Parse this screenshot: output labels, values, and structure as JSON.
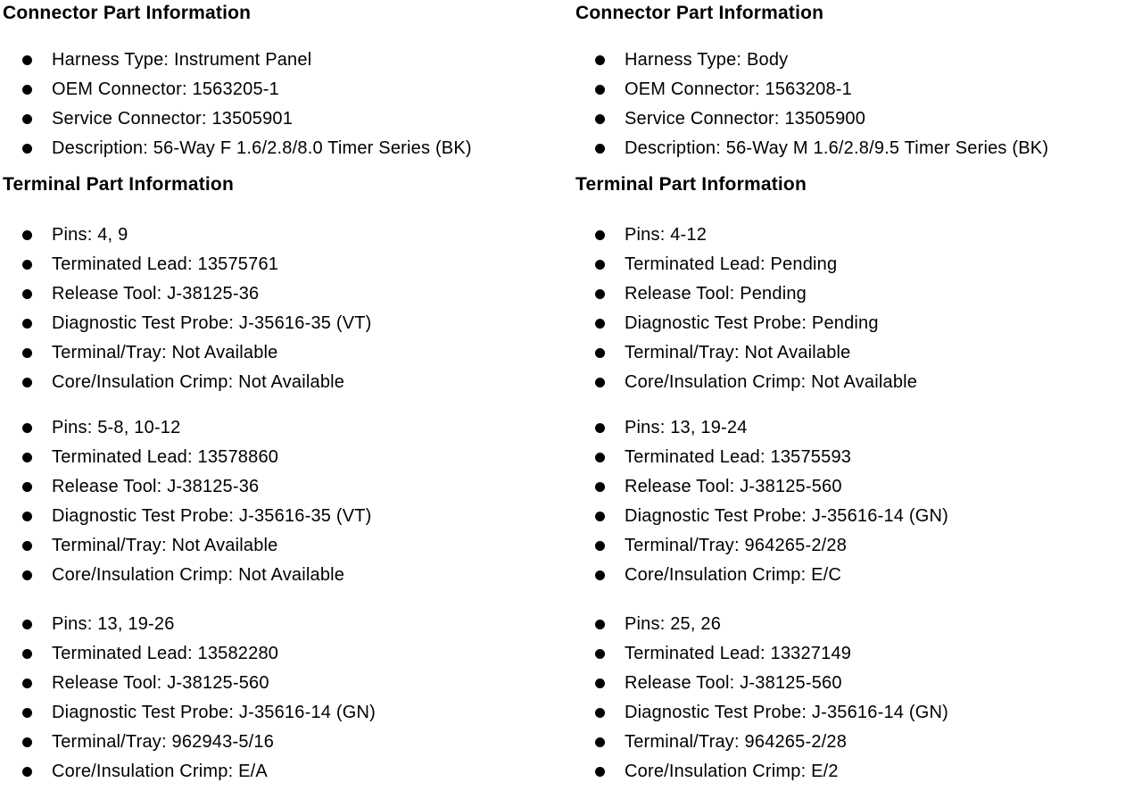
{
  "page": {
    "background_color": "#ffffff",
    "text_color": "#000000",
    "bullet_icon": "filled-circle",
    "columns": [
      {
        "connector": {
          "heading": "Connector Part Information",
          "items": [
            {
              "label": "Harness Type:",
              "value": "Instrument Panel"
            },
            {
              "label": "OEM Connector:",
              "value": "1563205-1"
            },
            {
              "label": "Service Connector:",
              "value": "13505901"
            },
            {
              "label": "Description:",
              "value": "56-Way F 1.6/2.8/8.0 Timer Series (BK)"
            }
          ]
        },
        "terminal": {
          "heading": "Terminal Part Information",
          "groups": [
            [
              {
                "label": "Pins:",
                "value": "4, 9"
              },
              {
                "label": "Terminated Lead:",
                "value": "13575761"
              },
              {
                "label": "Release Tool:",
                "value": "J-38125-36"
              },
              {
                "label": "Diagnostic Test Probe:",
                "value": "J-35616-35 (VT)"
              },
              {
                "label": "Terminal/Tray:",
                "value": "Not Available"
              },
              {
                "label": "Core/Insulation Crimp:",
                "value": "Not Available"
              }
            ],
            [
              {
                "label": "Pins:",
                "value": "5-8, 10-12"
              },
              {
                "label": "Terminated Lead:",
                "value": "13578860"
              },
              {
                "label": "Release Tool:",
                "value": "J-38125-36"
              },
              {
                "label": "Diagnostic Test Probe:",
                "value": "J-35616-35 (VT)"
              },
              {
                "label": "Terminal/Tray:",
                "value": "Not Available"
              },
              {
                "label": "Core/Insulation Crimp:",
                "value": "Not Available"
              }
            ],
            [
              {
                "label": "Pins:",
                "value": "13, 19-26"
              },
              {
                "label": "Terminated Lead:",
                "value": "13582280"
              },
              {
                "label": "Release Tool:",
                "value": "J-38125-560"
              },
              {
                "label": "Diagnostic Test Probe:",
                "value": "J-35616-14 (GN)"
              },
              {
                "label": "Terminal/Tray:",
                "value": "962943-5/16"
              },
              {
                "label": "Core/Insulation Crimp:",
                "value": "E/A"
              }
            ]
          ]
        }
      },
      {
        "connector": {
          "heading": "Connector Part Information",
          "items": [
            {
              "label": "Harness Type:",
              "value": "Body"
            },
            {
              "label": "OEM Connector:",
              "value": "1563208-1"
            },
            {
              "label": "Service Connector:",
              "value": "13505900"
            },
            {
              "label": "Description:",
              "value": "56-Way M 1.6/2.8/9.5 Timer Series (BK)"
            }
          ]
        },
        "terminal": {
          "heading": "Terminal Part Information",
          "groups": [
            [
              {
                "label": "Pins:",
                "value": "4-12"
              },
              {
                "label": "Terminated Lead:",
                "value": "Pending"
              },
              {
                "label": "Release Tool:",
                "value": "Pending"
              },
              {
                "label": "Diagnostic Test Probe:",
                "value": "Pending"
              },
              {
                "label": "Terminal/Tray:",
                "value": "Not Available"
              },
              {
                "label": "Core/Insulation Crimp:",
                "value": "Not Available"
              }
            ],
            [
              {
                "label": "Pins:",
                "value": "13, 19-24"
              },
              {
                "label": "Terminated Lead:",
                "value": "13575593"
              },
              {
                "label": "Release Tool:",
                "value": "J-38125-560"
              },
              {
                "label": "Diagnostic Test Probe:",
                "value": "J-35616-14 (GN)"
              },
              {
                "label": "Terminal/Tray:",
                "value": "964265-2/28"
              },
              {
                "label": "Core/Insulation Crimp:",
                "value": "E/C"
              }
            ],
            [
              {
                "label": "Pins:",
                "value": "25, 26"
              },
              {
                "label": "Terminated Lead:",
                "value": "13327149"
              },
              {
                "label": "Release Tool:",
                "value": "J-38125-560"
              },
              {
                "label": "Diagnostic Test Probe:",
                "value": "J-35616-14 (GN)"
              },
              {
                "label": "Terminal/Tray:",
                "value": "964265-2/28"
              },
              {
                "label": "Core/Insulation Crimp:",
                "value": "E/2"
              }
            ]
          ]
        }
      }
    ]
  }
}
